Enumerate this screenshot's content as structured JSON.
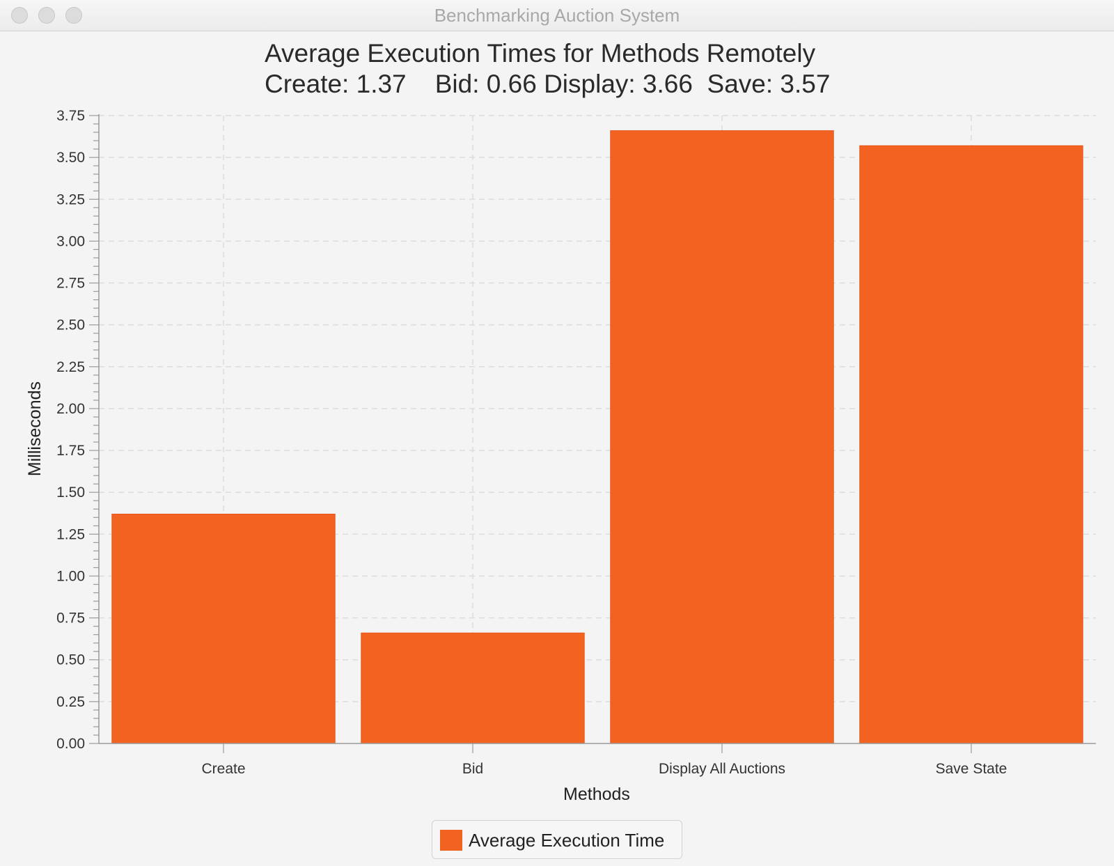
{
  "window": {
    "title": "Benchmarking Auction System"
  },
  "colors": {
    "bar": "#f26322",
    "bar_edge": "#e6561a",
    "grid": "#dcdcdc",
    "axis": "#9a9a9a"
  },
  "chart_data": {
    "type": "bar",
    "title": "Average Execution Times for Methods Remotely",
    "subtitle": "Create: 1.37    Bid: 0.66 Display: 3.66  Save: 3.57",
    "xlabel": "Methods",
    "ylabel": "Milliseconds",
    "categories": [
      "Create",
      "Bid",
      "Display All Auctions",
      "Save State"
    ],
    "series": [
      {
        "name": "Average Execution Time",
        "values": [
          1.37,
          0.66,
          3.66,
          3.57
        ]
      }
    ],
    "ylim": [
      0,
      3.75
    ],
    "ytick_step": 0.25,
    "grid": true,
    "legend_position": "bottom-center"
  }
}
